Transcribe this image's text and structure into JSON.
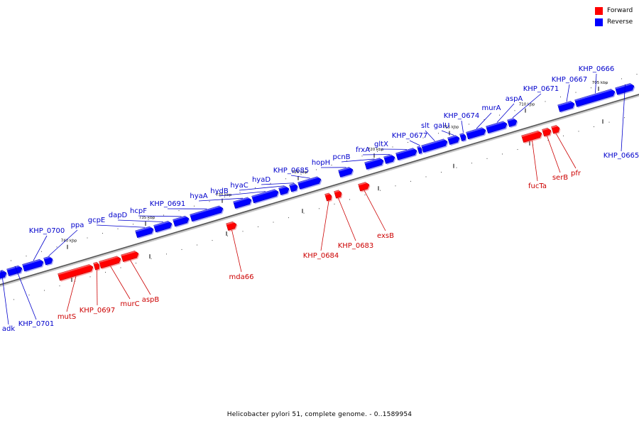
{
  "legend": {
    "items": [
      {
        "label": "Forward",
        "color": "#ff0000"
      },
      {
        "label": "Reverse",
        "color": "#0000ff"
      }
    ]
  },
  "caption": "Helicobacter pylori 51, complete genome. - 0..1589954",
  "chart_data": {
    "type": "genome-map",
    "strands": {
      "forward_color": "#ff0000",
      "reverse_color": "#0000ff",
      "label_forward_color": "#cc0000",
      "label_reverse_color": "#0000cc"
    },
    "ticks": [
      {
        "label": "740 kbp",
        "kbp": 740
      },
      {
        "label": "735 kbp",
        "kbp": 735
      },
      {
        "label": "730 kbp",
        "kbp": 730
      },
      {
        "label": "725 kbp",
        "kbp": 725
      },
      {
        "label": "720 kbp",
        "kbp": 720
      },
      {
        "label": "715 kbp",
        "kbp": 715
      },
      {
        "label": "710 kbp",
        "kbp": 710
      },
      {
        "label": "705 kbp",
        "kbp": 705
      }
    ],
    "genes": [
      {
        "name": "adk",
        "strand": "reverse"
      },
      {
        "name": "KHP_0701",
        "strand": "reverse"
      },
      {
        "name": "KHP_0700",
        "strand": "reverse"
      },
      {
        "name": "ppa",
        "strand": "reverse"
      },
      {
        "name": "gcpE",
        "strand": "reverse"
      },
      {
        "name": "dapD",
        "strand": "reverse"
      },
      {
        "name": "hcpF",
        "strand": "reverse"
      },
      {
        "name": "KHP_0691",
        "strand": "reverse"
      },
      {
        "name": "hyaA",
        "strand": "reverse"
      },
      {
        "name": "hydB",
        "strand": "reverse"
      },
      {
        "name": "hyaC",
        "strand": "reverse"
      },
      {
        "name": "hyaD",
        "strand": "reverse"
      },
      {
        "name": "KHP_0685",
        "strand": "reverse"
      },
      {
        "name": "hopH",
        "strand": "reverse"
      },
      {
        "name": "pcnB",
        "strand": "reverse"
      },
      {
        "name": "frxA",
        "strand": "reverse"
      },
      {
        "name": "gltX",
        "strand": "reverse"
      },
      {
        "name": "KHP_0677",
        "strand": "reverse"
      },
      {
        "name": "slt",
        "strand": "reverse"
      },
      {
        "name": "galU",
        "strand": "reverse"
      },
      {
        "name": "KHP_0674",
        "strand": "reverse"
      },
      {
        "name": "murA",
        "strand": "reverse"
      },
      {
        "name": "aspA",
        "strand": "reverse"
      },
      {
        "name": "KHP_0671",
        "strand": "reverse"
      },
      {
        "name": "KHP_0667",
        "strand": "reverse"
      },
      {
        "name": "KHP_0666",
        "strand": "reverse"
      },
      {
        "name": "KHP_0665",
        "strand": "reverse"
      },
      {
        "name": "mutS",
        "strand": "forward"
      },
      {
        "name": "KHP_0697",
        "strand": "forward"
      },
      {
        "name": "murC",
        "strand": "forward"
      },
      {
        "name": "aspB",
        "strand": "forward"
      },
      {
        "name": "mda66",
        "strand": "forward"
      },
      {
        "name": "KHP_0684",
        "strand": "forward"
      },
      {
        "name": "KHP_0683",
        "strand": "forward"
      },
      {
        "name": "exsB",
        "strand": "forward"
      },
      {
        "name": "fucTa",
        "strand": "forward"
      },
      {
        "name": "serB",
        "strand": "forward"
      },
      {
        "name": "pfr",
        "strand": "forward"
      }
    ]
  }
}
